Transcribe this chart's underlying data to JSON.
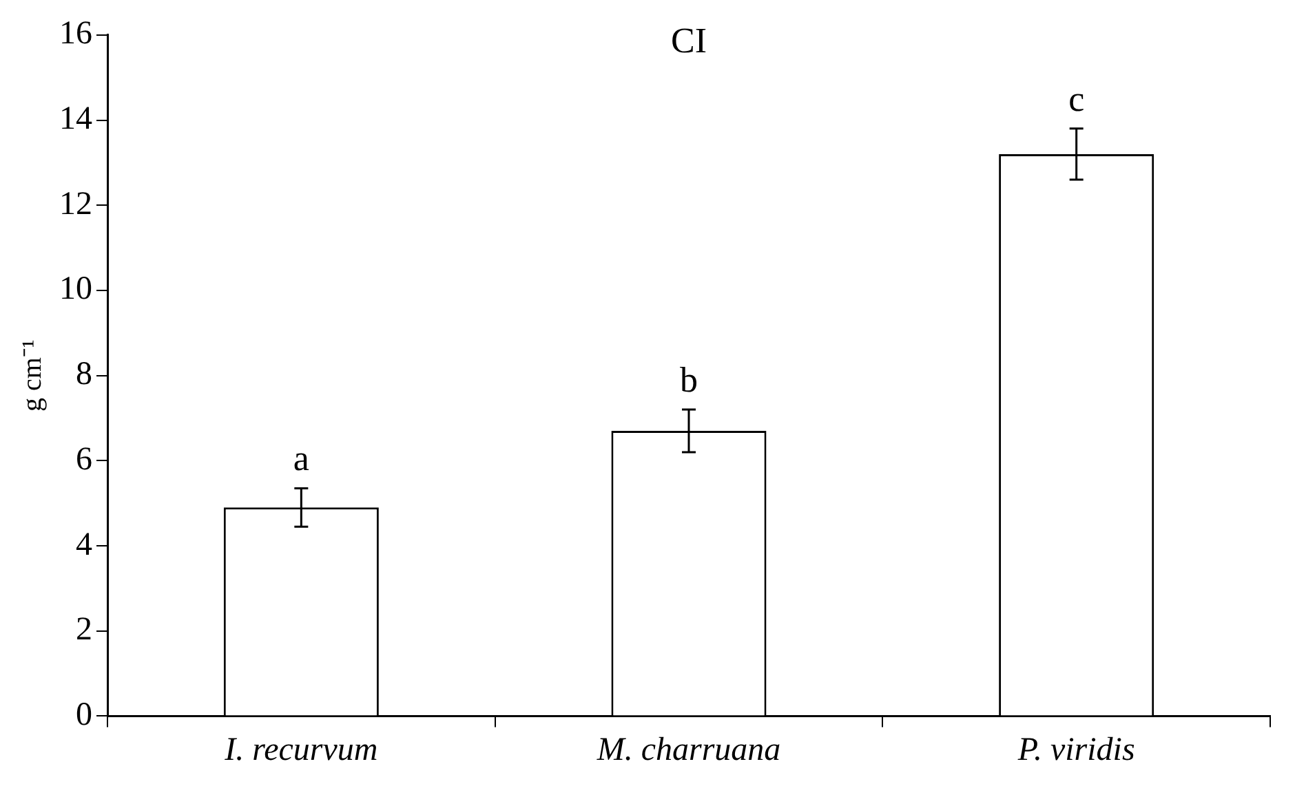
{
  "chart_data": {
    "type": "bar",
    "title": "CI",
    "ylabel": "g cm⁻¹",
    "categories": [
      "I. recurvum",
      "M. charruana",
      "P. viridis"
    ],
    "values": [
      4.9,
      6.7,
      13.2
    ],
    "errors": [
      0.45,
      0.5,
      0.6
    ],
    "color": "#ffffff",
    "ylim": [
      0,
      16
    ],
    "yticks": [
      0,
      2,
      4,
      6,
      8,
      10,
      12,
      14,
      16
    ],
    "grid": false,
    "legend": false,
    "annotations": [
      "a",
      "b",
      "c"
    ]
  }
}
